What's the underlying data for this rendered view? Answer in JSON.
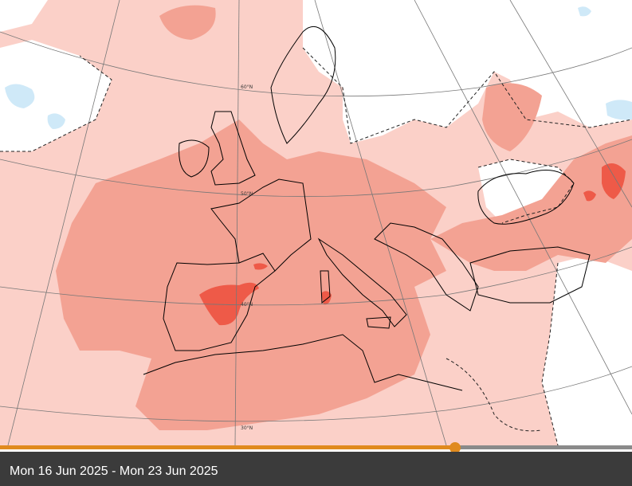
{
  "map": {
    "title": "",
    "latitude_labels": [
      "60°N",
      "50°N",
      "40°N",
      "30°N"
    ],
    "colors": {
      "background": "#ffffff",
      "anomaly_light": "#fbd0c8",
      "anomaly_medium": "#f3a293",
      "anomaly_strong": "#ee5a48",
      "anomaly_cold": "#cfe9f8",
      "coastline": "#000000",
      "border": "#555555",
      "graticule": "#777777"
    }
  },
  "timeline": {
    "progress": 0.72,
    "colors": {
      "track": "#8a8a8a",
      "progress": "#e08a1e"
    }
  },
  "caption": {
    "date_range": "Mon 16 Jun 2025 - Mon 23 Jun 2025"
  }
}
